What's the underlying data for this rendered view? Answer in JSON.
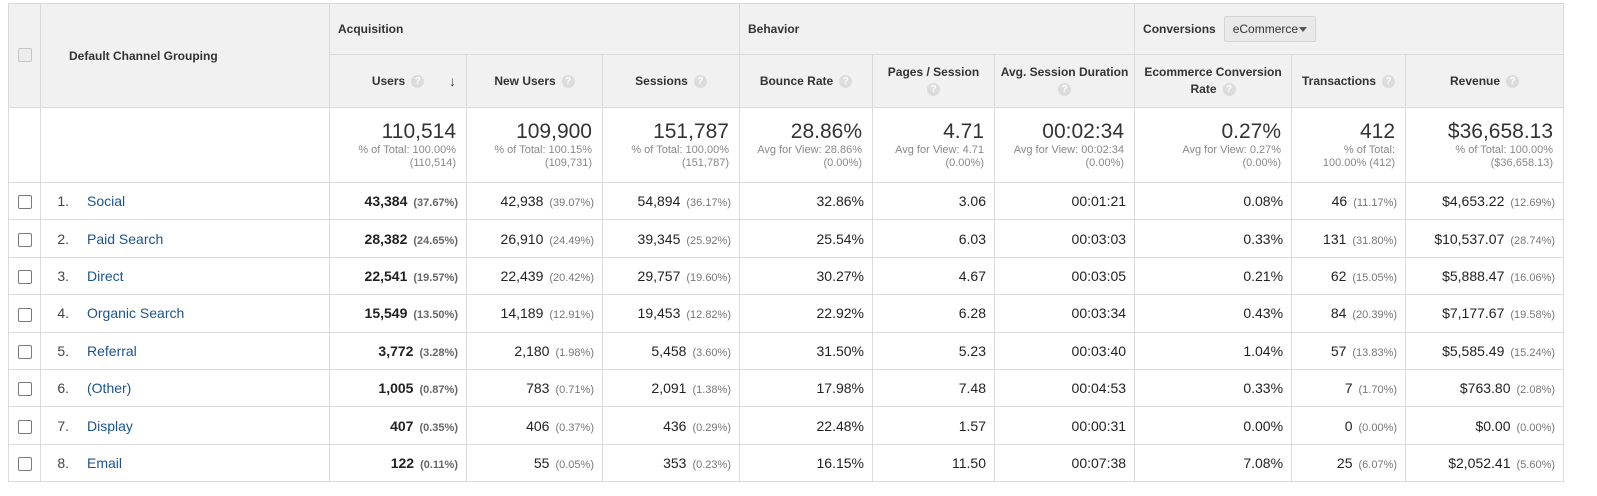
{
  "header": {
    "dimension_label": "Default Channel Grouping",
    "groups": {
      "acquisition": "Acquisition",
      "behavior": "Behavior",
      "conversions": "Conversions"
    },
    "conversions_select": "eCommerce",
    "columns": {
      "users": "Users",
      "new_users": "New Users",
      "sessions": "Sessions",
      "bounce_rate": "Bounce Rate",
      "pages_session": "Pages / Session",
      "avg_duration": "Avg. Session Duration",
      "ecr_line1": "Ecommerce Conversion",
      "ecr_line2": "Rate",
      "transactions": "Transactions",
      "revenue": "Revenue"
    },
    "help_glyph": "?",
    "sort_arrow": "↓"
  },
  "totals": {
    "users": {
      "value": "110,514",
      "l1": "% of Total: 100.00%",
      "l2": "(110,514)"
    },
    "new_users": {
      "value": "109,900",
      "l1": "% of Total: 100.15%",
      "l2": "(109,731)"
    },
    "sessions": {
      "value": "151,787",
      "l1": "% of Total: 100.00%",
      "l2": "(151,787)"
    },
    "bounce_rate": {
      "value": "28.86%",
      "l1": "Avg for View: 28.86%",
      "l2": "(0.00%)"
    },
    "pages_session": {
      "value": "4.71",
      "l1": "Avg for View: 4.71",
      "l2": "(0.00%)"
    },
    "avg_duration": {
      "value": "00:02:34",
      "l1": "Avg for View: 00:02:34",
      "l2": "(0.00%)"
    },
    "ecr": {
      "value": "0.27%",
      "l1": "Avg for View: 0.27%",
      "l2": "(0.00%)"
    },
    "transactions": {
      "value": "412",
      "l1": "% of Total:",
      "l2": "100.00% (412)"
    },
    "revenue": {
      "value": "$36,658.13",
      "l1": "% of Total: 100.00%",
      "l2": "($36,658.13)"
    }
  },
  "rows": [
    {
      "idx": "1.",
      "name": "Social",
      "users": "43,384",
      "users_pct": "(37.67%)",
      "new_users": "42,938",
      "new_users_pct": "(39.07%)",
      "sessions": "54,894",
      "sessions_pct": "(36.17%)",
      "bounce": "32.86%",
      "pps": "3.06",
      "dur": "00:01:21",
      "ecr": "0.08%",
      "tx": "46",
      "tx_pct": "(11.17%)",
      "rev": "$4,653.22",
      "rev_pct": "(12.69%)"
    },
    {
      "idx": "2.",
      "name": "Paid Search",
      "users": "28,382",
      "users_pct": "(24.65%)",
      "new_users": "26,910",
      "new_users_pct": "(24.49%)",
      "sessions": "39,345",
      "sessions_pct": "(25.92%)",
      "bounce": "25.54%",
      "pps": "6.03",
      "dur": "00:03:03",
      "ecr": "0.33%",
      "tx": "131",
      "tx_pct": "(31.80%)",
      "rev": "$10,537.07",
      "rev_pct": "(28.74%)"
    },
    {
      "idx": "3.",
      "name": "Direct",
      "users": "22,541",
      "users_pct": "(19.57%)",
      "new_users": "22,439",
      "new_users_pct": "(20.42%)",
      "sessions": "29,757",
      "sessions_pct": "(19.60%)",
      "bounce": "30.27%",
      "pps": "4.67",
      "dur": "00:03:05",
      "ecr": "0.21%",
      "tx": "62",
      "tx_pct": "(15.05%)",
      "rev": "$5,888.47",
      "rev_pct": "(16.06%)"
    },
    {
      "idx": "4.",
      "name": "Organic Search",
      "users": "15,549",
      "users_pct": "(13.50%)",
      "new_users": "14,189",
      "new_users_pct": "(12.91%)",
      "sessions": "19,453",
      "sessions_pct": "(12.82%)",
      "bounce": "22.92%",
      "pps": "6.28",
      "dur": "00:03:34",
      "ecr": "0.43%",
      "tx": "84",
      "tx_pct": "(20.39%)",
      "rev": "$7,177.67",
      "rev_pct": "(19.58%)"
    },
    {
      "idx": "5.",
      "name": "Referral",
      "users": "3,772",
      "users_pct": "(3.28%)",
      "new_users": "2,180",
      "new_users_pct": "(1.98%)",
      "sessions": "5,458",
      "sessions_pct": "(3.60%)",
      "bounce": "31.50%",
      "pps": "5.23",
      "dur": "00:03:40",
      "ecr": "1.04%",
      "tx": "57",
      "tx_pct": "(13.83%)",
      "rev": "$5,585.49",
      "rev_pct": "(15.24%)"
    },
    {
      "idx": "6.",
      "name": "(Other)",
      "users": "1,005",
      "users_pct": "(0.87%)",
      "new_users": "783",
      "new_users_pct": "(0.71%)",
      "sessions": "2,091",
      "sessions_pct": "(1.38%)",
      "bounce": "17.98%",
      "pps": "7.48",
      "dur": "00:04:53",
      "ecr": "0.33%",
      "tx": "7",
      "tx_pct": "(1.70%)",
      "rev": "$763.80",
      "rev_pct": "(2.08%)"
    },
    {
      "idx": "7.",
      "name": "Display",
      "users": "407",
      "users_pct": "(0.35%)",
      "new_users": "406",
      "new_users_pct": "(0.37%)",
      "sessions": "436",
      "sessions_pct": "(0.29%)",
      "bounce": "22.48%",
      "pps": "1.57",
      "dur": "00:00:31",
      "ecr": "0.00%",
      "tx": "0",
      "tx_pct": "(0.00%)",
      "rev": "$0.00",
      "rev_pct": "(0.00%)"
    },
    {
      "idx": "8.",
      "name": "Email",
      "users": "122",
      "users_pct": "(0.11%)",
      "new_users": "55",
      "new_users_pct": "(0.05%)",
      "sessions": "353",
      "sessions_pct": "(0.23%)",
      "bounce": "16.15%",
      "pps": "11.50",
      "dur": "00:07:38",
      "ecr": "7.08%",
      "tx": "25",
      "tx_pct": "(6.07%)",
      "rev": "$2,052.41",
      "rev_pct": "(5.60%)"
    }
  ],
  "colors": {
    "link": "#1a5391",
    "header_bg": "#f1f1f1",
    "border": "#dadada"
  }
}
